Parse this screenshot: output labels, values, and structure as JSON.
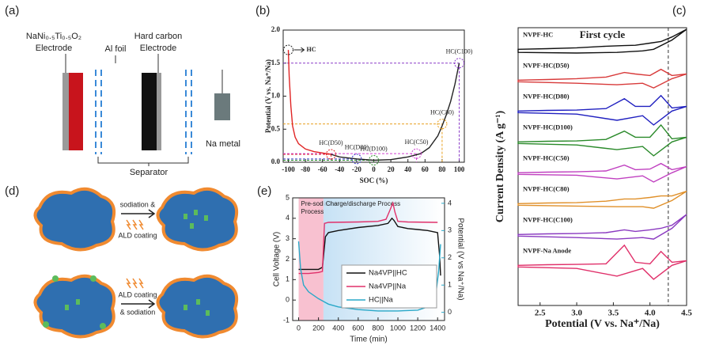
{
  "panel_a": {
    "label": "(a)",
    "cathode_formula": "NaNi₀.₅Ti₀.₅O₂",
    "cathode_label": "Electrode",
    "foil_label": "Al foil",
    "anode_formula": "Hard carbon",
    "anode_label": "Electrode",
    "metal_label": "Na metal",
    "separator_label": "Separator"
  },
  "panel_d": {
    "label": "(d)",
    "top_step_1": "sodiation &",
    "top_step_2": "ALD coating",
    "bottom_step_1": "ALD coating",
    "bottom_step_2": "& sodiation"
  },
  "chart_data": [
    {
      "type": "line",
      "panel_label": "(b)",
      "x_label": "SOC (%)",
      "y_label": "Potential (V vs. Na⁺/Na)",
      "xlim": [
        -106,
        106
      ],
      "ylim": [
        0,
        2.0
      ],
      "xticks": [
        -100,
        -80,
        -60,
        -40,
        -20,
        0,
        20,
        40,
        60,
        80,
        100
      ],
      "yticks": [
        {
          "value": 0,
          "label": "0.0"
        },
        {
          "value": 0.5,
          "label": "0.5"
        },
        {
          "value": 1.0,
          "label": "1.0"
        },
        {
          "value": 1.5,
          "label": "1.5"
        },
        {
          "value": 2.0,
          "label": "2.0"
        }
      ],
      "series": [
        {
          "color": "#e02424",
          "x": [
            -100,
            -99,
            -97,
            -95,
            -92,
            -88,
            -80,
            -70,
            -60,
            -50
          ],
          "values": [
            1.7,
            1.3,
            0.85,
            0.55,
            0.38,
            0.28,
            0.2,
            0.16,
            0.14,
            0.12
          ]
        },
        {
          "color": "#222222",
          "x": [
            -50,
            -40,
            -20,
            0,
            20,
            40,
            55,
            65,
            75,
            80,
            85,
            90,
            95,
            100
          ],
          "values": [
            0.12,
            0.08,
            0.05,
            0.03,
            0.04,
            0.08,
            0.13,
            0.22,
            0.4,
            0.55,
            0.72,
            0.92,
            1.18,
            1.5
          ]
        }
      ],
      "annotations": [
        {
          "label": "HC",
          "x": -100,
          "y": 1.7,
          "color": "#222222"
        },
        {
          "label": "HC(D50)",
          "x": -50,
          "y": 0.12,
          "color": "#e02424"
        },
        {
          "label": "HC(D80)",
          "x": -20,
          "y": 0.05,
          "color": "#3a3ac8"
        },
        {
          "label": "HC(D100)",
          "x": 0,
          "y": 0.03,
          "color": "#2a8a2a"
        },
        {
          "label": "HC(C50)",
          "x": 50,
          "y": 0.13,
          "color": "#d040d0"
        },
        {
          "label": "HC(C80)",
          "x": 80,
          "y": 0.58,
          "color": "#e8a020"
        },
        {
          "label": "HC(C100)",
          "x": 100,
          "y": 1.5,
          "color": "#8a3ac8"
        }
      ]
    },
    {
      "type": "line",
      "panel_label": "(e)",
      "x_label": "Time (min)",
      "y_label": "Cell Voltage (V)",
      "y2_label": "Potential (V vs Na⁺/Na)",
      "xlim": [
        -60,
        1470
      ],
      "ylim": [
        -1,
        5
      ],
      "y2lim": [
        -0.3,
        4.2
      ],
      "xticks": [
        0,
        200,
        400,
        600,
        800,
        1000,
        1200,
        1400
      ],
      "yticks": [
        -1,
        0,
        1,
        2,
        3,
        4,
        5
      ],
      "y2ticks": [
        0,
        1,
        2,
        3,
        4
      ],
      "regions": [
        {
          "label": [
            "Pre-sodiation",
            "Process"
          ],
          "x": [
            0,
            250
          ],
          "color": "#f7b6c8"
        },
        {
          "label": [
            "Charge/discharge Process"
          ],
          "x": [
            250,
            1450
          ],
          "color": "#cfe6f5"
        }
      ],
      "series": [
        {
          "name": "Na4VP||HC",
          "color": "#111111",
          "x": [
            0,
            100,
            200,
            240,
            270,
            300,
            400,
            600,
            800,
            900,
            940,
            960,
            1000,
            1100,
            1200,
            1300,
            1400,
            1420,
            1430
          ],
          "values": [
            1.5,
            1.5,
            1.5,
            1.6,
            3.1,
            3.3,
            3.4,
            3.55,
            3.65,
            3.75,
            4.0,
            3.9,
            3.6,
            3.5,
            3.45,
            3.4,
            3.3,
            2.2,
            1.2
          ]
        },
        {
          "name": "Na4VP||Na",
          "color": "#e0306a",
          "x": [
            0,
            100,
            200,
            240,
            260,
            300,
            600,
            800,
            880,
            920,
            950,
            970,
            1000,
            1100,
            1400
          ],
          "values": [
            1.3,
            1.3,
            1.35,
            1.4,
            3.75,
            3.8,
            3.82,
            3.85,
            3.95,
            4.4,
            4.75,
            4.3,
            3.85,
            3.82,
            3.8
          ]
        },
        {
          "name": "HC||Na",
          "color": "#29a8c8",
          "axis": "y2",
          "x": [
            0,
            20,
            50,
            100,
            200,
            300,
            400,
            600,
            800,
            1000,
            1200,
            1300,
            1380,
            1410,
            1430
          ],
          "values": [
            2.6,
            1.6,
            1.0,
            0.75,
            0.5,
            0.3,
            0.2,
            0.1,
            0.05,
            0.05,
            0.08,
            0.2,
            0.6,
            1.5,
            2.5
          ]
        }
      ]
    },
    {
      "type": "line",
      "panel_label": "(c)",
      "title": "First cycle",
      "x_label": "Potential (V vs. Na⁺/Na)",
      "y_label": "Current Density (A g⁻¹)",
      "xlim": [
        2.2,
        4.5
      ],
      "ylim": [
        0,
        9
      ],
      "xticks": [
        2.5,
        {
          "value": 3.0,
          "label": "3.0"
        },
        3.5,
        {
          "value": 4.0,
          "label": "4.0"
        },
        4.5
      ],
      "marker_x": 4.25,
      "x": [
        2.2,
        2.6,
        3.0,
        3.4,
        3.65,
        3.8,
        4.0,
        4.15,
        4.3,
        4.5,
        4.3,
        4.05,
        3.9,
        3.55,
        3.0,
        2.2
      ],
      "series": [
        {
          "name": "NVPF-HC",
          "color": "#111111",
          "values": [
            8.3,
            8.32,
            8.35,
            8.4,
            8.42,
            8.43,
            8.5,
            8.55,
            8.7,
            8.95,
            8.6,
            8.3,
            8.25,
            8.2,
            8.18,
            8.2
          ]
        },
        {
          "name": "NVPF-HC(D50)",
          "color": "#d83a3a",
          "values": [
            7.3,
            7.32,
            7.35,
            7.4,
            7.55,
            7.5,
            7.45,
            7.65,
            7.45,
            7.5,
            7.35,
            7.05,
            7.2,
            7.15,
            7.2,
            7.25
          ]
        },
        {
          "name": "NVPF-HC(D80)",
          "color": "#2020c0",
          "values": [
            6.3,
            6.32,
            6.33,
            6.38,
            6.7,
            6.45,
            6.45,
            6.8,
            6.4,
            6.45,
            6.3,
            5.85,
            6.15,
            6.0,
            6.2,
            6.25
          ]
        },
        {
          "name": "NVPF-HC(D100)",
          "color": "#2a8a2a",
          "values": [
            5.3,
            5.32,
            5.33,
            5.38,
            5.65,
            5.45,
            5.45,
            5.85,
            5.4,
            5.45,
            5.3,
            4.85,
            5.15,
            5.05,
            5.2,
            5.25
          ]
        },
        {
          "name": "NVPF-HC(C50)",
          "color": "#c040c0",
          "values": [
            4.3,
            4.32,
            4.33,
            4.36,
            4.55,
            4.4,
            4.42,
            4.6,
            4.4,
            4.5,
            4.3,
            4.0,
            4.2,
            4.1,
            4.22,
            4.25
          ]
        },
        {
          "name": "NVPF-HC(C80)",
          "color": "#e0902a",
          "values": [
            3.3,
            3.32,
            3.33,
            3.38,
            3.45,
            3.45,
            3.5,
            3.55,
            3.55,
            3.7,
            3.4,
            3.15,
            3.2,
            3.2,
            3.22,
            3.25
          ]
        },
        {
          "name": "NVPF-HC(C100)",
          "color": "#8a3ac0",
          "values": [
            2.3,
            2.32,
            2.33,
            2.36,
            2.45,
            2.4,
            2.45,
            2.5,
            2.6,
            2.95,
            2.5,
            2.15,
            2.2,
            2.15,
            2.2,
            2.25
          ]
        },
        {
          "name": "NVPF-Na Anode",
          "color": "#e0306a",
          "values": [
            1.3,
            1.32,
            1.33,
            1.35,
            1.95,
            1.4,
            1.35,
            1.75,
            1.4,
            1.45,
            1.3,
            0.85,
            1.2,
            0.95,
            1.2,
            1.25
          ]
        }
      ]
    }
  ]
}
